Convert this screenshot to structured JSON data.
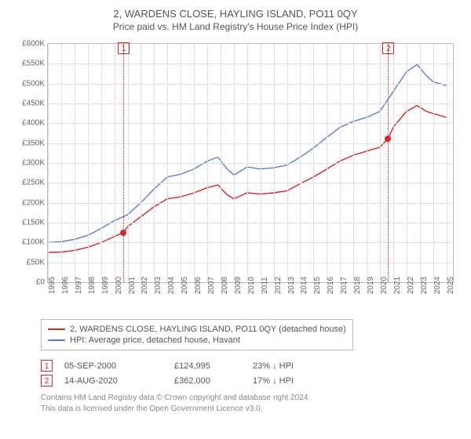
{
  "title": "2, WARDENS CLOSE, HAYLING ISLAND, PO11 0QY",
  "subtitle": "Price paid vs. HM Land Registry's House Price Index (HPI)",
  "chart": {
    "type": "line",
    "background_color": "#ffffff",
    "grid_color": "#e0e0e0",
    "border_color": "#bbbbbb",
    "xlim": [
      1995,
      2025.5
    ],
    "ylim": [
      0,
      600000
    ],
    "ytick_step": 50000,
    "ytick_prefix": "£",
    "ytick_suffix": "K",
    "ytick_divisor": 1000,
    "xticks": [
      1995,
      1996,
      1997,
      1998,
      1999,
      2000,
      2001,
      2002,
      2003,
      2004,
      2005,
      2006,
      2007,
      2008,
      2009,
      2010,
      2011,
      2012,
      2013,
      2014,
      2015,
      2016,
      2017,
      2018,
      2019,
      2020,
      2021,
      2022,
      2023,
      2024,
      2025
    ],
    "xlabel_fontsize": 10,
    "ylabel_fontsize": 10,
    "line_width": 1.4,
    "series": [
      {
        "key": "property",
        "label": "2, WARDENS CLOSE, HAYLING ISLAND, PO11 0QY (detached house)",
        "color": "#d92525",
        "data": [
          [
            1995,
            75000
          ],
          [
            1996,
            76000
          ],
          [
            1997,
            80000
          ],
          [
            1998,
            88000
          ],
          [
            1999,
            100000
          ],
          [
            2000,
            115000
          ],
          [
            2000.68,
            124995
          ],
          [
            2001,
            140000
          ],
          [
            2002,
            165000
          ],
          [
            2003,
            190000
          ],
          [
            2004,
            210000
          ],
          [
            2005,
            215000
          ],
          [
            2006,
            225000
          ],
          [
            2007,
            238000
          ],
          [
            2007.8,
            245000
          ],
          [
            2008.5,
            220000
          ],
          [
            2009,
            210000
          ],
          [
            2010,
            225000
          ],
          [
            2011,
            222000
          ],
          [
            2012,
            225000
          ],
          [
            2013,
            230000
          ],
          [
            2014,
            248000
          ],
          [
            2015,
            265000
          ],
          [
            2016,
            285000
          ],
          [
            2017,
            305000
          ],
          [
            2018,
            320000
          ],
          [
            2019,
            330000
          ],
          [
            2020,
            340000
          ],
          [
            2020.62,
            362000
          ],
          [
            2021,
            390000
          ],
          [
            2022,
            430000
          ],
          [
            2022.8,
            445000
          ],
          [
            2023.5,
            430000
          ],
          [
            2024,
            425000
          ],
          [
            2025,
            415000
          ]
        ]
      },
      {
        "key": "hpi",
        "label": "HPI: Average price, detached house, Havant",
        "color": "#5b7fc7",
        "data": [
          [
            1995,
            100000
          ],
          [
            1996,
            102000
          ],
          [
            1997,
            108000
          ],
          [
            1998,
            118000
          ],
          [
            1999,
            135000
          ],
          [
            2000,
            155000
          ],
          [
            2001,
            170000
          ],
          [
            2002,
            200000
          ],
          [
            2003,
            235000
          ],
          [
            2004,
            265000
          ],
          [
            2005,
            272000
          ],
          [
            2006,
            285000
          ],
          [
            2007,
            305000
          ],
          [
            2007.8,
            315000
          ],
          [
            2008.5,
            285000
          ],
          [
            2009,
            270000
          ],
          [
            2010,
            290000
          ],
          [
            2011,
            285000
          ],
          [
            2012,
            288000
          ],
          [
            2013,
            295000
          ],
          [
            2014,
            315000
          ],
          [
            2015,
            338000
          ],
          [
            2016,
            365000
          ],
          [
            2017,
            390000
          ],
          [
            2018,
            405000
          ],
          [
            2019,
            415000
          ],
          [
            2020,
            430000
          ],
          [
            2021,
            480000
          ],
          [
            2022,
            530000
          ],
          [
            2022.8,
            548000
          ],
          [
            2023.5,
            520000
          ],
          [
            2024,
            505000
          ],
          [
            2025,
            495000
          ]
        ]
      }
    ],
    "price_markers": [
      {
        "x": 2000.68,
        "y": 124995,
        "color": "#d92525"
      },
      {
        "x": 2020.62,
        "y": 362000,
        "color": "#d92525"
      }
    ],
    "flags": [
      {
        "n": "1",
        "x": 2000.68,
        "color": "#d92525"
      },
      {
        "n": "2",
        "x": 2020.62,
        "color": "#d92525"
      }
    ]
  },
  "legend": {
    "border_color": "#bbbbbb",
    "fontsize": 11
  },
  "events": [
    {
      "n": "1",
      "date": "05-SEP-2000",
      "price": "£124,995",
      "delta": "23% ↓ HPI",
      "color": "#d92525"
    },
    {
      "n": "2",
      "date": "14-AUG-2020",
      "price": "£362,000",
      "delta": "17% ↓ HPI",
      "color": "#d92525"
    }
  ],
  "footnote": {
    "line1": "Contains HM Land Registry data © Crown copyright and database right 2024.",
    "line2": "This data is licensed under the Open Government Licence v3.0."
  },
  "colors": {
    "text": "#555555",
    "muted": "#888888"
  }
}
